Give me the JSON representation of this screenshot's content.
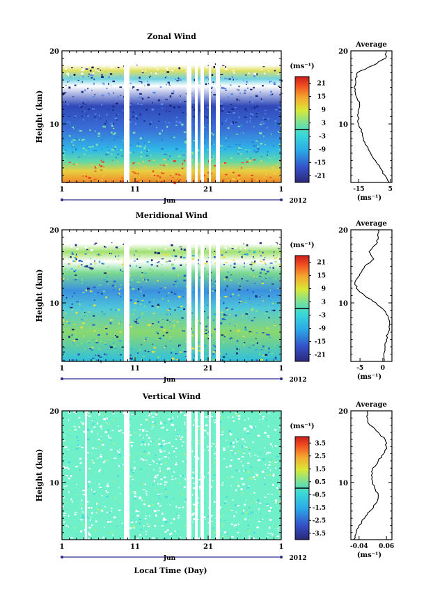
{
  "figure": {
    "xlabel": "Local Time (Day)",
    "month": "Jun",
    "year": "2012",
    "unit": "(ms⁻¹)",
    "unit_avg": "(ms⁻¹)",
    "avg_title": "Average",
    "height_label": "Height (km)"
  },
  "chart_data": [
    {
      "type": "heatmap",
      "title": "Zonal Wind",
      "ylabel": "Height (km)",
      "ylim": [
        2,
        20
      ],
      "y_ticks": [
        "20",
        "10"
      ],
      "x_ticks": [
        "1",
        "11",
        "21",
        "1"
      ],
      "x_range_days": [
        1,
        31
      ],
      "colorbar_ticks": [
        "21",
        "15",
        "9",
        "3",
        "-3",
        "-9",
        "-15",
        "-21"
      ],
      "colorbar_range": [
        -24,
        24
      ],
      "average_profile": {
        "title": "Average",
        "xlabel": "(ms⁻¹)",
        "x_ticks": [
          "-15",
          "5"
        ],
        "xlim": [
          -20,
          6
        ],
        "height": [
          2,
          3,
          4,
          5,
          6,
          7,
          8,
          9,
          10,
          11,
          12,
          13,
          14,
          15,
          16,
          17,
          18,
          19,
          20
        ],
        "value": [
          4.5,
          1.5,
          -1.5,
          -4.5,
          -7.5,
          -10,
          -12,
          -13.5,
          -15,
          -15.5,
          -15,
          -14.5,
          -17,
          -18,
          -17,
          -16,
          -6,
          2,
          2.5
        ]
      }
    },
    {
      "type": "heatmap",
      "title": "Meridional Wind",
      "ylabel": "Height (km)",
      "ylim": [
        2,
        20
      ],
      "y_ticks": [
        "20",
        "10"
      ],
      "x_ticks": [
        "1",
        "11",
        "21",
        "1"
      ],
      "x_range_days": [
        1,
        31
      ],
      "colorbar_ticks": [
        "21",
        "15",
        "9",
        "3",
        "-3",
        "-9",
        "-15",
        "-21"
      ],
      "colorbar_range": [
        -24,
        24
      ],
      "average_profile": {
        "title": "Average",
        "xlabel": "(ms⁻¹)",
        "x_ticks": [
          "-5",
          "0"
        ],
        "xlim": [
          -7,
          2
        ],
        "height": [
          2,
          3,
          4,
          5,
          6,
          7,
          8,
          9,
          10,
          11,
          12,
          13,
          14,
          15,
          16,
          17,
          18,
          19,
          20
        ],
        "value": [
          0.3,
          0.2,
          0.5,
          0.8,
          1.2,
          1.5,
          1.2,
          0.3,
          -1.5,
          -4,
          -5.8,
          -6,
          -5,
          -4,
          -2,
          -3,
          -1.5,
          -1,
          -1
        ]
      }
    },
    {
      "type": "heatmap",
      "title": "Vertical Wind",
      "ylabel": "Height (km)",
      "ylim": [
        2,
        20
      ],
      "y_ticks": [
        "20",
        "10"
      ],
      "x_ticks": [
        "1",
        "11",
        "21",
        "1"
      ],
      "x_range_days": [
        1,
        31
      ],
      "colorbar_ticks": [
        "3.5",
        "2.5",
        "1.5",
        "0.5",
        "-0.5",
        "-1.5",
        "-2.5",
        "-3.5"
      ],
      "colorbar_range": [
        -4,
        4
      ],
      "average_profile": {
        "title": "Average",
        "xlabel": "(ms⁻¹)",
        "x_ticks": [
          "-0.04",
          "0.06"
        ],
        "xlim": [
          -0.07,
          0.08
        ],
        "height": [
          2,
          3,
          4,
          5,
          6,
          7,
          8,
          9,
          10,
          11,
          12,
          13,
          14,
          15,
          16,
          17,
          18,
          19,
          20
        ],
        "value": [
          -0.06,
          -0.05,
          -0.04,
          -0.02,
          0.0,
          0.02,
          0.03,
          0.02,
          0.01,
          0.005,
          0.01,
          0.03,
          0.05,
          0.06,
          0.055,
          0.03,
          0.0,
          -0.01,
          -0.01
        ]
      }
    }
  ]
}
